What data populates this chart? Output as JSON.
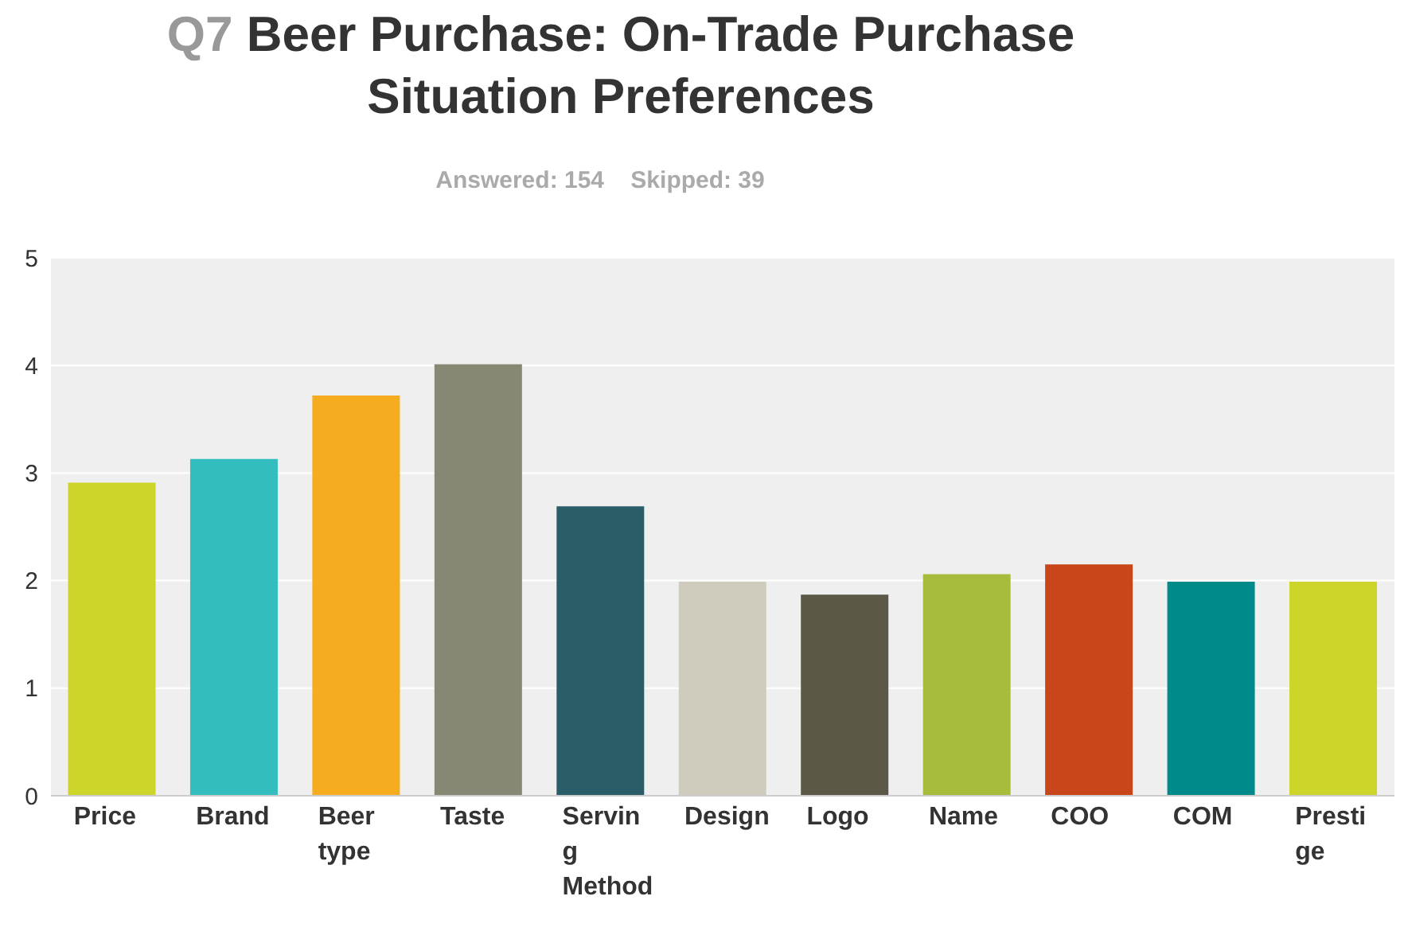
{
  "chart_data": {
    "type": "bar",
    "title": "Q7 Beer Purchase: On-Trade Purchase Situation Preferences",
    "subtitle": "Answered: 154    Skipped: 39",
    "categories": [
      "Price",
      "Brand",
      "Beer type",
      "Taste",
      "Serving Method",
      "Design",
      "Logo",
      "Name",
      "COO",
      "COM",
      "Prestige"
    ],
    "values": [
      2.91,
      3.13,
      3.72,
      4.01,
      2.69,
      1.99,
      1.87,
      2.06,
      2.15,
      1.99,
      1.99
    ],
    "colors": [
      "#cdd52a",
      "#33bdbf",
      "#f5ad1f",
      "#878774",
      "#2b5d69",
      "#cfccbd",
      "#5b5848",
      "#a7bc3a",
      "#c84619",
      "#008b8a",
      "#cdd52a"
    ],
    "ylim": [
      0,
      5
    ],
    "yticks": [
      0,
      1,
      2,
      3,
      4,
      5
    ],
    "grid": "y"
  }
}
